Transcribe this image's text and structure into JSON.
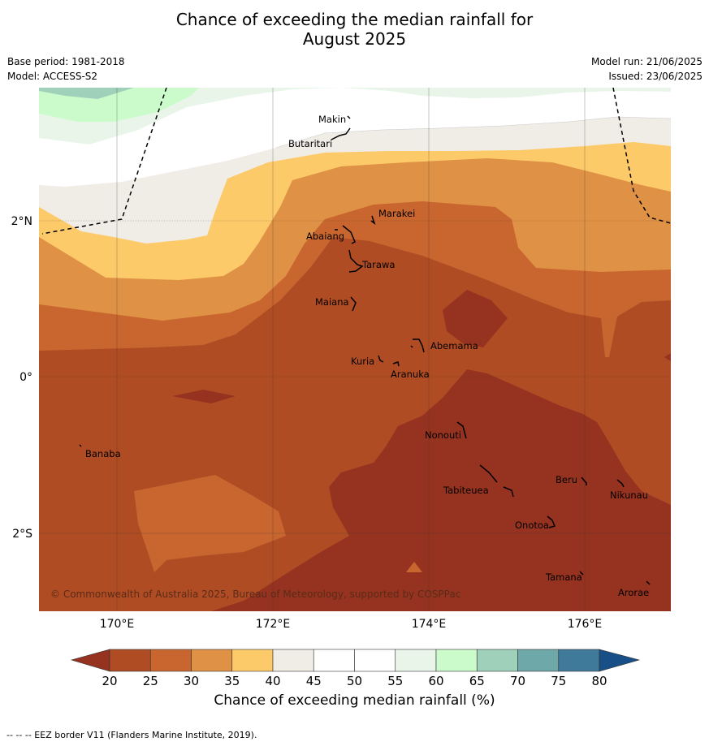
{
  "title_line1": "Chance of exceeding the median rainfall for",
  "title_line2": "August 2025",
  "meta": {
    "base_period": "Base period: 1981-2018",
    "model": "Model: ACCESS-S2",
    "model_run": "Model run: 21/06/2025",
    "issued": "Issued: 23/06/2025"
  },
  "axes": {
    "x_ticks": [
      "170°E",
      "172°E",
      "174°E",
      "176°E"
    ],
    "y_ticks": [
      "2°N",
      "0°",
      "2°S"
    ]
  },
  "places": [
    "Makin",
    "Butaritari",
    "Marakei",
    "Abaiang",
    "Tarawa",
    "Maiana",
    "Abemama",
    "Kuria",
    "Aranuka",
    "Banaba",
    "Nonouti",
    "Beru",
    "Nikunau",
    "Tabiteuea",
    "Onotoa",
    "Tamana",
    "Arorae"
  ],
  "copyright": "© Commonwealth of Australia 2025, Bureau of Meteorology, supported by COSPPac",
  "colorbar": {
    "ticks": [
      "20",
      "25",
      "30",
      "35",
      "40",
      "45",
      "50",
      "55",
      "60",
      "65",
      "70",
      "75",
      "80"
    ],
    "colors": [
      "#b04c24",
      "#c9652f",
      "#df9145",
      "#fdca6a",
      "#f0ece6",
      "#ffffff",
      "#ffffff",
      "#eaf5ea",
      "#cbfbcb",
      "#9fd0b9",
      "#6fa8a8",
      "#3f7a9a"
    ],
    "under_color": "#953320",
    "over_color": "#174f86",
    "label": "Chance of exceeding median rainfall (%)"
  },
  "footnote": "--  --  -- EEZ border V11 (Flanders Marine Institute, 2019)."
}
